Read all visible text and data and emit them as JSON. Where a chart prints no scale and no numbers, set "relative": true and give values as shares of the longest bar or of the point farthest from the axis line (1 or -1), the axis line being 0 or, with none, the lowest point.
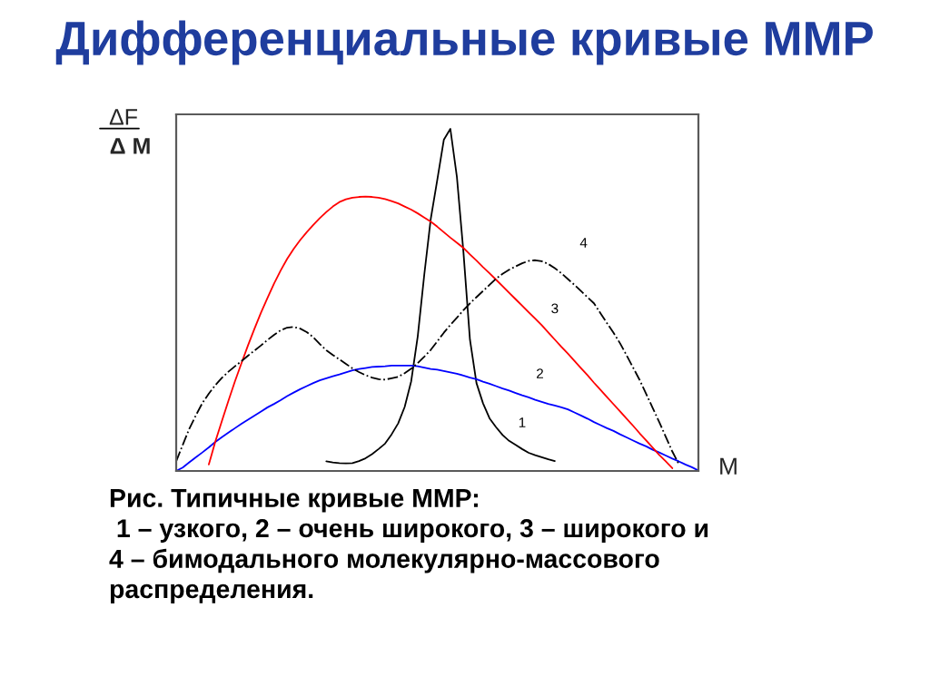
{
  "chart_data": {
    "type": "line",
    "title": "Дифференциальные кривые ММР",
    "xlabel": "M",
    "ylabel": "ΔF\nΔ M",
    "relative": true,
    "categories": [
      null,
      null,
      null,
      null,
      null,
      null,
      null,
      null,
      null,
      null,
      null,
      null,
      null,
      null,
      null,
      null,
      null,
      null,
      null,
      null,
      null,
      null,
      null,
      null,
      null,
      null,
      null,
      null,
      null,
      null,
      null,
      null,
      null,
      null,
      null,
      null,
      null,
      null,
      null,
      null,
      null,
      null,
      null,
      null,
      null,
      null,
      null,
      null,
      null,
      null,
      null,
      null,
      null,
      null,
      null,
      null,
      null,
      null,
      null,
      null,
      null,
      null,
      null,
      null,
      null,
      null,
      null,
      null,
      null,
      null,
      null,
      null,
      null,
      null,
      null,
      null,
      null,
      null,
      null,
      null,
      null
    ],
    "series": [
      {
        "name": "1",
        "color": "#000000",
        "values": [
          null,
          null,
          null,
          null,
          null,
          null,
          null,
          null,
          null,
          null,
          null,
          null,
          null,
          null,
          null,
          null,
          null,
          null,
          null,
          null,
          null,
          null,
          null,
          0.028,
          0.025,
          0.023,
          0.022,
          0.023,
          0.029,
          0.037,
          0.049,
          0.064,
          0.08,
          0.107,
          0.139,
          0.187,
          0.262,
          0.393,
          0.573,
          0.737,
          0.851,
          0.968,
          1.0,
          0.86,
          0.641,
          0.384,
          0.257,
          0.198,
          0.154,
          0.128,
          0.105,
          0.088,
          0.076,
          0.064,
          0.053,
          0.046,
          0.04,
          0.034,
          0.029,
          null,
          null,
          null,
          null,
          null,
          null,
          null,
          null,
          null,
          null,
          null,
          null,
          null,
          null,
          null,
          null,
          null,
          null,
          null,
          null,
          null,
          null
        ]
      },
      {
        "name": "2",
        "color": "#0000ff",
        "values": [
          0,
          0.01,
          0.025,
          0.04,
          0.054,
          0.069,
          0.085,
          0.099,
          0.112,
          0.125,
          0.138,
          0.15,
          0.162,
          0.174,
          0.186,
          0.196,
          0.207,
          0.219,
          0.229,
          0.239,
          0.248,
          0.257,
          0.265,
          0.271,
          0.277,
          0.282,
          0.288,
          0.294,
          0.298,
          0.301,
          0.304,
          0.305,
          0.306,
          0.308,
          0.308,
          0.308,
          0.308,
          0.306,
          0.302,
          0.298,
          0.296,
          0.292,
          0.288,
          0.284,
          0.279,
          0.273,
          0.268,
          0.261,
          0.255,
          0.248,
          0.241,
          0.235,
          0.228,
          0.221,
          0.215,
          0.208,
          0.202,
          0.196,
          0.191,
          0.186,
          0.18,
          0.171,
          0.162,
          0.153,
          0.143,
          0.134,
          0.125,
          0.117,
          0.107,
          0.098,
          0.089,
          0.08,
          0.072,
          0.062,
          0.054,
          0.045,
          0.036,
          0.028,
          0.019,
          0.011,
          0.001
        ]
      },
      {
        "name": "3",
        "color": "#ff0000",
        "values": [
          null,
          null,
          null,
          null,
          null,
          0.019,
          0.086,
          0.146,
          0.205,
          0.262,
          0.315,
          0.367,
          0.416,
          0.463,
          0.506,
          0.548,
          0.586,
          0.62,
          0.649,
          0.675,
          0.698,
          0.719,
          0.739,
          0.757,
          0.773,
          0.786,
          0.794,
          0.799,
          0.801,
          0.802,
          0.801,
          0.799,
          0.795,
          0.789,
          0.782,
          0.773,
          0.764,
          0.753,
          0.741,
          0.729,
          0.714,
          0.698,
          0.682,
          0.667,
          0.652,
          0.633,
          0.615,
          0.596,
          0.578,
          0.559,
          0.54,
          0.521,
          0.502,
          0.483,
          0.464,
          0.445,
          0.426,
          0.405,
          0.384,
          0.363,
          0.343,
          0.322,
          0.301,
          0.28,
          0.258,
          0.237,
          0.216,
          0.195,
          0.174,
          0.153,
          0.132,
          0.11,
          0.089,
          0.068,
          0.047,
          0.028,
          0.008,
          null,
          null,
          null,
          null
        ]
      },
      {
        "name": "4",
        "color": "#000000",
        "line_style": "dashdot",
        "values": [
          0.028,
          0.076,
          0.123,
          0.162,
          0.198,
          0.226,
          0.251,
          0.272,
          0.29,
          0.306,
          0.321,
          0.337,
          0.352,
          0.367,
          0.383,
          0.398,
          0.411,
          0.419,
          0.421,
          0.416,
          0.406,
          0.391,
          0.371,
          0.353,
          0.339,
          0.326,
          0.313,
          0.3,
          0.289,
          0.28,
          0.273,
          0.268,
          0.267,
          0.271,
          0.275,
          0.286,
          0.299,
          0.315,
          0.334,
          0.354,
          0.379,
          0.404,
          0.427,
          0.448,
          0.47,
          0.49,
          0.508,
          0.526,
          0.544,
          0.562,
          0.576,
          0.588,
          0.598,
          0.607,
          0.614,
          0.616,
          0.613,
          0.605,
          0.593,
          0.578,
          0.561,
          0.544,
          0.526,
          0.508,
          0.49,
          0.461,
          0.432,
          0.404,
          0.373,
          0.338,
          0.302,
          0.266,
          0.225,
          0.184,
          0.143,
          0.1,
          0.057,
          0.02,
          null,
          null,
          null
        ]
      }
    ],
    "annotations": [
      "Рис. Типичные кривые ММР:\n 1 – узкого, 2 – очень широкого, 3 – широкого и\n4 – бимодального молекулярно-массового\nраспределения."
    ]
  }
}
